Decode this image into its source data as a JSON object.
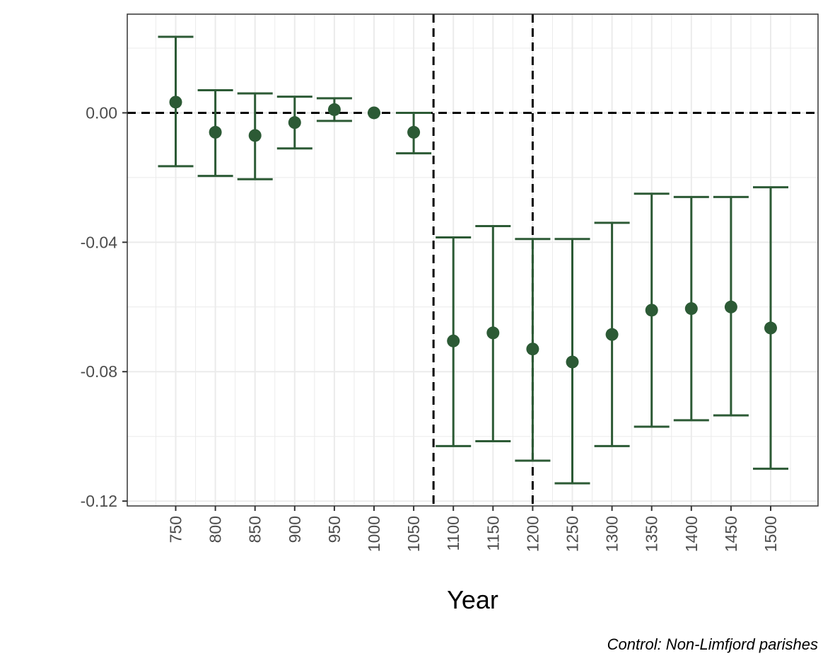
{
  "chart_data": {
    "type": "scatter",
    "style": "point-with-error-bars",
    "title": "",
    "xlabel": "Year",
    "ylabel": "",
    "caption": "Control: Non-Limfjord parishes",
    "x_ticks": [
      "750",
      "800",
      "850",
      "900",
      "950",
      "1000",
      "1050",
      "1100",
      "1150",
      "1200",
      "1250",
      "1300",
      "1350",
      "1400",
      "1450",
      "1500"
    ],
    "y_ticks": [
      0.0,
      -0.04,
      -0.08,
      -0.12
    ],
    "y_tick_labels": [
      "0.00",
      "-0.04",
      "-0.08",
      "-0.12"
    ],
    "ylim": [
      -0.1215,
      0.0305
    ],
    "grid": true,
    "reference_lines": {
      "horizontal_y": 0.0,
      "vertical_between": [
        [
          "1050",
          "1100"
        ],
        [
          "1200",
          "1200"
        ]
      ]
    },
    "colors": {
      "points": "#2c5a35",
      "reference": "#000000",
      "grid": "#ebebeb",
      "panel_border": "#333333"
    },
    "series": [
      {
        "x": [
          "750",
          "800",
          "850",
          "900",
          "950",
          "1000",
          "1050",
          "1100",
          "1150",
          "1200",
          "1250",
          "1300",
          "1350",
          "1400",
          "1450",
          "1500"
        ],
        "estimate": [
          0.0033,
          -0.006,
          -0.007,
          -0.003,
          0.001,
          0.0,
          -0.006,
          -0.0705,
          -0.068,
          -0.073,
          -0.077,
          -0.0685,
          -0.061,
          -0.0605,
          -0.06,
          -0.0665
        ],
        "ci_low": [
          -0.0165,
          -0.0195,
          -0.0205,
          -0.011,
          -0.0025,
          0.0,
          -0.0125,
          -0.103,
          -0.1015,
          -0.1075,
          -0.1145,
          -0.103,
          -0.097,
          -0.095,
          -0.0935,
          -0.11
        ],
        "ci_high": [
          0.0235,
          0.007,
          0.006,
          0.005,
          0.0045,
          0.0,
          0.0,
          -0.0385,
          -0.035,
          -0.039,
          -0.039,
          -0.034,
          -0.025,
          -0.026,
          -0.026,
          -0.023
        ]
      }
    ]
  }
}
